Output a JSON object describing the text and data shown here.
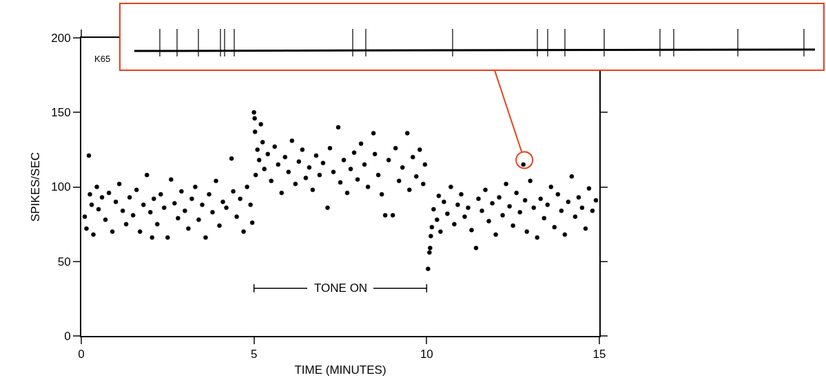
{
  "chart_data": {
    "type": "scatter",
    "xlabel": "TIME (MINUTES)",
    "ylabel": "SPIKES/SEC",
    "x": [
      0.1,
      0.15,
      0.22,
      0.25,
      0.3,
      0.35,
      0.45,
      0.5,
      0.6,
      0.7,
      0.8,
      0.9,
      1.0,
      1.1,
      1.2,
      1.3,
      1.4,
      1.5,
      1.6,
      1.7,
      1.8,
      1.9,
      2.0,
      2.05,
      2.1,
      2.2,
      2.3,
      2.4,
      2.5,
      2.6,
      2.7,
      2.8,
      2.9,
      3.0,
      3.1,
      3.2,
      3.3,
      3.4,
      3.5,
      3.6,
      3.7,
      3.8,
      3.9,
      4.0,
      4.1,
      4.2,
      4.35,
      4.4,
      4.5,
      4.6,
      4.7,
      4.8,
      4.9,
      4.95,
      5.0,
      5.02,
      5.03,
      5.05,
      5.1,
      5.15,
      5.2,
      5.25,
      5.3,
      5.4,
      5.5,
      5.6,
      5.7,
      5.8,
      5.9,
      6.0,
      6.1,
      6.2,
      6.3,
      6.4,
      6.5,
      6.6,
      6.7,
      6.8,
      6.9,
      7.0,
      7.13,
      7.2,
      7.3,
      7.44,
      7.5,
      7.6,
      7.7,
      7.8,
      7.9,
      8.0,
      8.1,
      8.2,
      8.3,
      8.46,
      8.5,
      8.6,
      8.7,
      8.8,
      8.9,
      9.02,
      9.1,
      9.2,
      9.3,
      9.44,
      9.5,
      9.6,
      9.7,
      9.8,
      9.9,
      9.95,
      10.04,
      10.08,
      10.1,
      10.12,
      10.15,
      10.2,
      10.3,
      10.35,
      10.4,
      10.5,
      10.6,
      10.7,
      10.8,
      10.9,
      11.0,
      11.1,
      11.2,
      11.3,
      11.43,
      11.5,
      11.6,
      11.7,
      11.8,
      11.9,
      12.0,
      12.1,
      12.2,
      12.3,
      12.4,
      12.5,
      12.6,
      12.7,
      12.8,
      12.85,
      12.9,
      13.0,
      13.1,
      13.2,
      13.3,
      13.4,
      13.5,
      13.6,
      13.7,
      13.8,
      13.9,
      14.0,
      14.1,
      14.2,
      14.3,
      14.4,
      14.5,
      14.6,
      14.7,
      14.8,
      14.9
    ],
    "values": [
      80,
      72,
      121,
      95,
      88,
      68,
      100,
      85,
      93,
      78,
      96,
      70,
      90,
      102,
      84,
      75,
      93,
      81,
      98,
      70,
      88,
      108,
      83,
      66,
      92,
      75,
      95,
      86,
      66,
      105,
      89,
      79,
      97,
      84,
      72,
      92,
      100,
      78,
      88,
      66,
      95,
      83,
      104,
      74,
      90,
      86,
      119,
      97,
      80,
      92,
      70,
      100,
      88,
      76,
      150,
      146,
      137,
      108,
      125,
      118,
      142,
      130,
      112,
      122,
      104,
      127,
      115,
      96,
      120,
      110,
      131,
      102,
      117,
      125,
      106,
      113,
      98,
      121,
      108,
      116,
      86,
      126,
      110,
      140,
      103,
      118,
      96,
      112,
      123,
      105,
      129,
      115,
      100,
      136,
      122,
      108,
      95,
      81,
      118,
      81,
      126,
      104,
      113,
      136,
      98,
      120,
      107,
      125,
      102,
      115,
      45,
      56,
      59,
      67,
      73,
      85,
      78,
      94,
      70,
      90,
      82,
      100,
      75,
      88,
      95,
      80,
      86,
      71,
      59,
      92,
      84,
      98,
      77,
      89,
      68,
      93,
      81,
      102,
      87,
      74,
      96,
      83,
      115,
      91,
      70,
      104,
      86,
      66,
      92,
      79,
      88,
      100,
      73,
      95,
      84,
      68,
      90,
      107,
      80,
      93,
      86,
      72,
      99,
      84,
      91
    ],
    "color": "#000000",
    "marker": "circle",
    "grid": false,
    "xlim": [
      0,
      15
    ],
    "xticks": [
      0,
      5,
      10,
      15
    ],
    "ylim": [
      0,
      200
    ],
    "yticks": [
      0,
      50,
      100,
      150,
      200
    ],
    "annotations": [
      "K65",
      "TONE ON"
    ]
  }
}
